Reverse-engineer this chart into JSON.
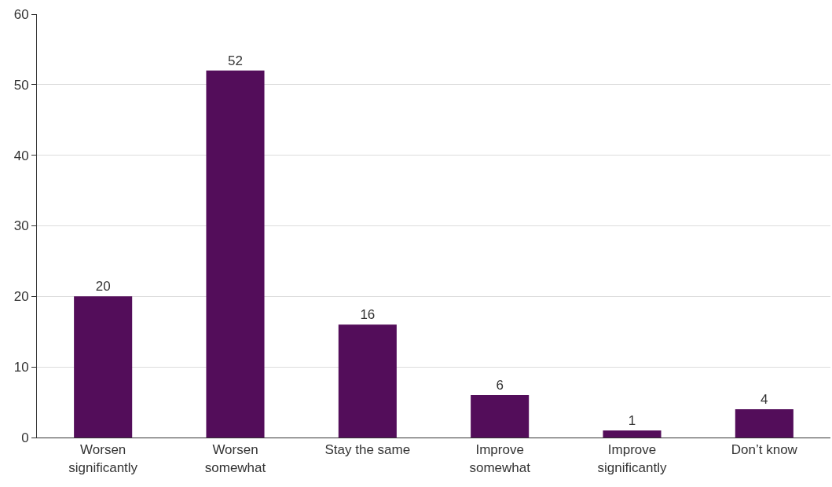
{
  "chart_data": {
    "type": "bar",
    "categories": [
      "Worsen significantly",
      "Worsen somewhat",
      "Stay the same",
      "Improve somewhat",
      "Improve significantly",
      "Don’t know"
    ],
    "values": [
      20,
      52,
      16,
      6,
      1,
      4
    ],
    "color": "#530d5a",
    "ylim": [
      0,
      60
    ],
    "yticks": [
      0,
      10,
      20,
      30,
      40,
      50,
      60
    ],
    "grid": "y",
    "data_labels": true
  }
}
